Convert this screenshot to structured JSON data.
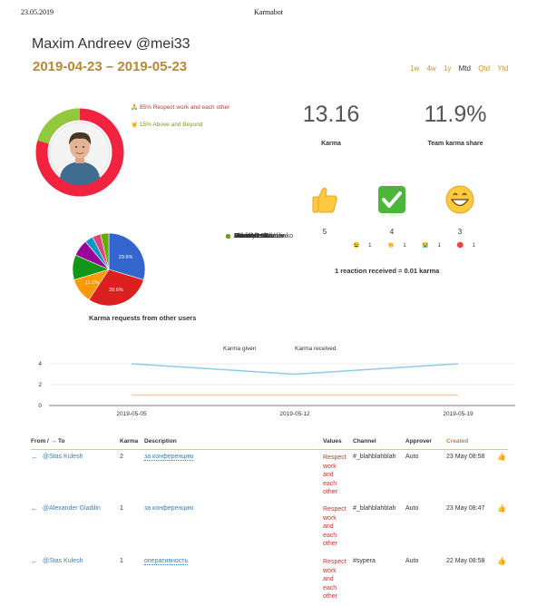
{
  "print": {
    "date": "23.05.2019",
    "title": "Karmabot"
  },
  "user": {
    "name": "Maxim Andreev",
    "handle": "@mei33"
  },
  "date_range": "2019-04-23 – 2019-05-23",
  "periods": [
    "1w",
    "4w",
    "1y",
    "Mtd",
    "Qtd",
    "Ytd"
  ],
  "period_active": "Mtd",
  "values_legend": [
    {
      "icon": "folded-hands-icon",
      "text": "85% Respect work and each other",
      "color": "#f2233e",
      "percent": 85
    },
    {
      "icon": "gesture-icon",
      "text": "15% Above and Beyond",
      "color": "#92c83e",
      "percent": 15
    }
  ],
  "stats": {
    "karma": {
      "value": "13.16",
      "label": "Karma"
    },
    "share": {
      "value": "11.9%",
      "label": "Team karma share"
    }
  },
  "reactions": [
    {
      "icon": "thumbs-up-icon",
      "count": "5"
    },
    {
      "icon": "check-mark-icon",
      "count": "4"
    },
    {
      "icon": "grinning-face-icon",
      "count": "3"
    }
  ],
  "mini_reactions": [
    {
      "icon": "tired-face-icon",
      "count": "1"
    },
    {
      "icon": "clapping-hands-icon",
      "count": "1"
    },
    {
      "icon": "crying-face-icon",
      "count": "1"
    },
    {
      "icon": "red-circle-icon",
      "count": "1"
    }
  ],
  "reaction_note": "1 reaction received = 0.01 karma",
  "chart_data": [
    {
      "type": "pie",
      "title": "Karma requests from other users",
      "categories": [
        "Stas Kulesh",
        "Vladislav Sadovenko",
        "Arkadiy Lukashov",
        "David Kravitz",
        "Maxim Usatov",
        "Alexander Gladilin",
        "Deleted User",
        "Other"
      ],
      "values": [
        29.6,
        29.6,
        11.1,
        11.1,
        7.4,
        3.7,
        3.7,
        3.7
      ],
      "data_labels": [
        "29.6%",
        "29.6%",
        "11.1%",
        "",
        "",
        "",
        "",
        ""
      ],
      "colors": [
        "#3366cc",
        "#dc1f1f",
        "#ff9900",
        "#109618",
        "#990099",
        "#0099c6",
        "#dd4477",
        "#66aa00"
      ],
      "legend_position": "right"
    },
    {
      "type": "line",
      "series": [
        {
          "name": "Karma given",
          "values": [
            4,
            3,
            4
          ],
          "color": "#8fcbe8"
        },
        {
          "name": "Karma received",
          "values": [
            1,
            1,
            1
          ],
          "color": "#f8d38d"
        }
      ],
      "x": [
        "2019-05-05",
        "2019-05-12",
        "2019-05-19"
      ],
      "yticks": [
        "0",
        "2",
        "4"
      ],
      "ylim": [
        0,
        5
      ],
      "grid": true,
      "legend_position": "top"
    }
  ],
  "table": {
    "headers": {
      "from_to": "From / → To",
      "karma": "Karma",
      "description": "Description",
      "values": "Values",
      "channel": "Channel",
      "approver": "Approver",
      "created": "Created"
    },
    "rows": [
      {
        "arrow": "←",
        "from": "@Stas Kulesh",
        "karma": "2",
        "description": "за конференцию",
        "values": [
          "Respect",
          "work",
          "and",
          "each",
          "other"
        ],
        "channel": "#_blahblahblah",
        "approver": "Auto",
        "created": "23 May 08:58"
      },
      {
        "arrow": "←",
        "from": "@Alexander Gladilin",
        "karma": "1",
        "description": "за конференцию",
        "values": [
          "Respect",
          "work",
          "and",
          "each",
          "other"
        ],
        "channel": "#_blahblahblah",
        "approver": "Auto",
        "created": "23 May 08:47"
      },
      {
        "arrow": "←",
        "from": "@Stas Kulesh",
        "karma": "1",
        "description": "оперативность",
        "values": [
          "Respect",
          "work",
          "and",
          "each",
          "other"
        ],
        "channel": "#sypera",
        "approver": "Auto",
        "created": "22 May 08:58"
      }
    ]
  }
}
